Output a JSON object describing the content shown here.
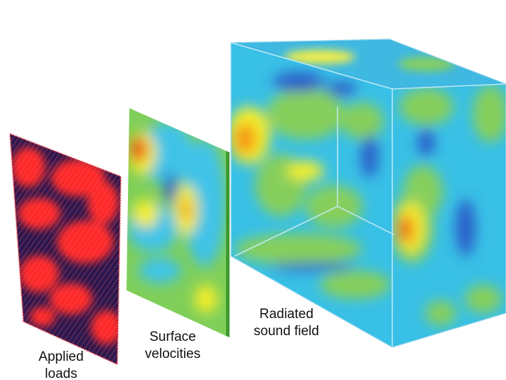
{
  "figure": {
    "captions": {
      "applied_loads": [
        "Applied",
        "loads"
      ],
      "surface_velocities": [
        "Surface",
        "velocities"
      ],
      "radiated_sound_field": [
        "Radiated",
        "sound field"
      ]
    },
    "colormap": {
      "applied_loads_base": "#2a1850",
      "applied_loads_arrows": "#ff2a2a",
      "plate_base": "#7fcf5a",
      "plate_edge": "#4da63a",
      "field_base": "#38c0e6",
      "field_low": "#2a5fc8",
      "field_mid": "#82cf5c",
      "field_high": "#f4ee2a",
      "field_peak": "#e8231c"
    }
  }
}
